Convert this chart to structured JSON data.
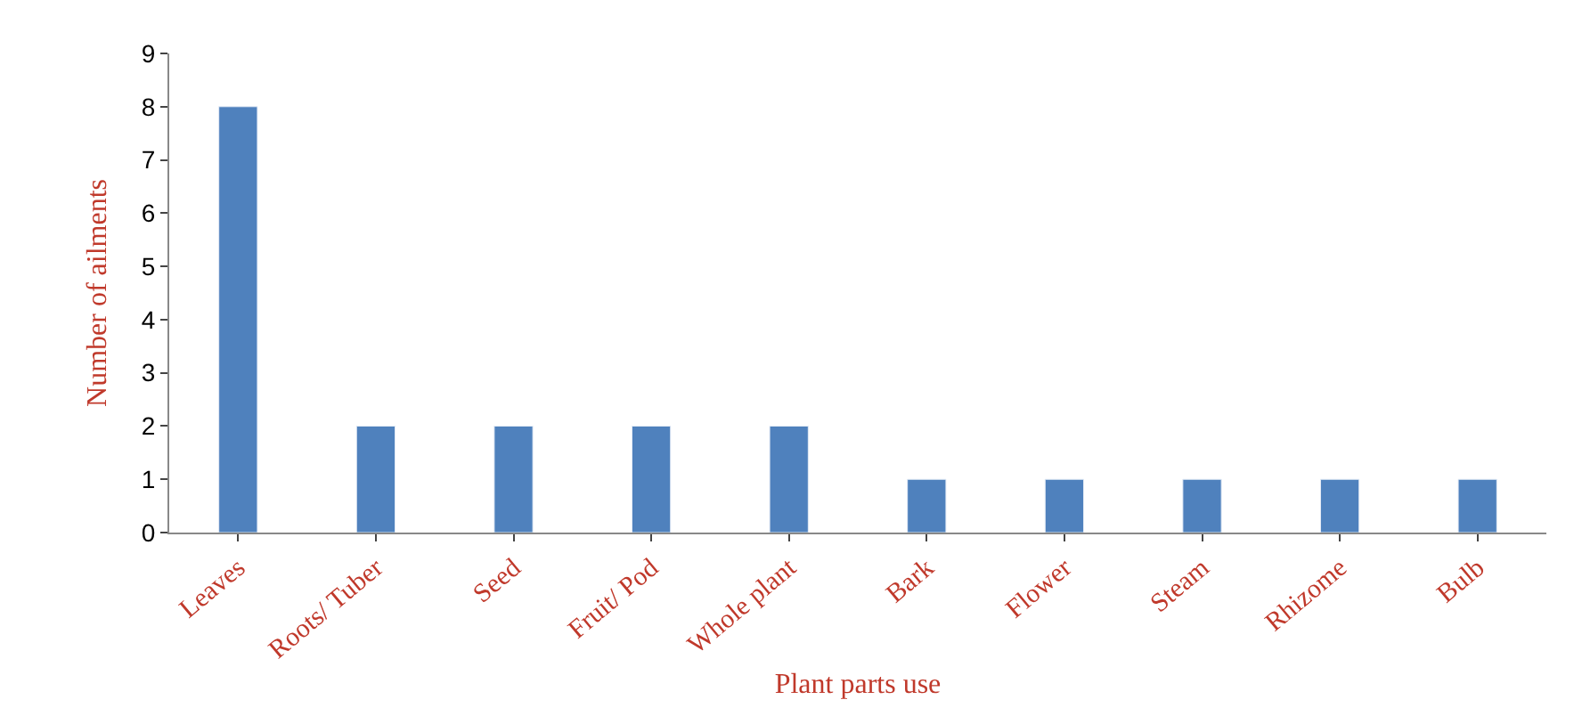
{
  "chart_data": {
    "type": "bar",
    "xlabel": "Plant parts use",
    "ylabel": "Number of ailments",
    "categories": [
      "Leaves",
      "Roots/ Tuber",
      "Seed",
      "Fruit/ Pod",
      "Whole plant",
      "Bark",
      "Flower",
      "Steam",
      "Rhizome",
      "Bulb"
    ],
    "values": [
      8,
      2,
      2,
      2,
      2,
      1,
      1,
      1,
      1,
      1
    ],
    "color": "#4f81bd",
    "ylim": [
      0,
      9
    ],
    "yticks": [
      0,
      1,
      2,
      3,
      4,
      5,
      6,
      7,
      8,
      9
    ]
  }
}
